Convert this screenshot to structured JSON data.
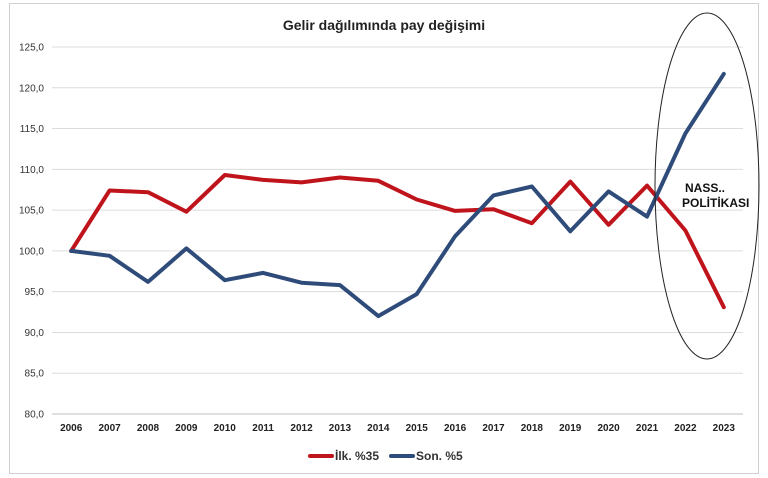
{
  "chart_data": {
    "type": "line",
    "title": "Gelir dağılımında pay değişimi",
    "xlabel": "",
    "ylabel": "",
    "categories": [
      "2006",
      "2007",
      "2008",
      "2009",
      "2010",
      "2011",
      "2012",
      "2013",
      "2014",
      "2015",
      "2016",
      "2017",
      "2018",
      "2019",
      "2020",
      "2021",
      "2022",
      "2023"
    ],
    "yticks": [
      "80,0",
      "85,0",
      "90,0",
      "95,0",
      "100,0",
      "105,0",
      "110,0",
      "115,0",
      "120,0",
      "125,0"
    ],
    "ylim": [
      80,
      125
    ],
    "grid": true,
    "legend": "bottom",
    "series": [
      {
        "name": "İlk. %35",
        "color": "#c0141c",
        "values": [
          100.0,
          107.4,
          107.2,
          104.8,
          109.3,
          108.7,
          108.4,
          109.0,
          108.6,
          106.3,
          104.9,
          105.1,
          103.4,
          108.5,
          103.2,
          108.0,
          102.5,
          93.1
        ]
      },
      {
        "name": "Son. %5",
        "color": "#2e4b7a",
        "values": [
          100.0,
          99.4,
          96.2,
          100.3,
          96.4,
          97.3,
          96.1,
          95.8,
          92.0,
          94.7,
          101.8,
          106.8,
          107.9,
          102.4,
          107.3,
          104.2,
          114.4,
          121.7
        ]
      }
    ],
    "annotation": {
      "lines": [
        "NASS..",
        "POLİTİKASI"
      ],
      "highlight": "ellipse"
    }
  }
}
